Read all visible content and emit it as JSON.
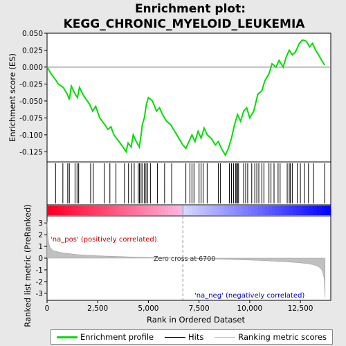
{
  "chart_data": {
    "type": "line",
    "title_line1": "Enrichment plot:",
    "title_line2": "KEGG_CHRONIC_MYELOID_LEUKEMIA",
    "colors": {
      "profile": "#00dd00",
      "hits": "#000000",
      "metric": "#c0c0c0",
      "pos": "#ff0000",
      "neg": "#0000ff"
    },
    "top_panel": {
      "ylabel": "Enrichment score (ES)",
      "ylim": [
        -0.14,
        0.05
      ],
      "yticks": [
        -0.125,
        -0.1,
        -0.075,
        -0.05,
        -0.025,
        0.0,
        0.025,
        0.05
      ],
      "ytick_labels": [
        "-0.125",
        "-0.100",
        "-0.075",
        "-0.050",
        "-0.025",
        "0.000",
        "0.025",
        "0.050"
      ],
      "series": [
        {
          "name": "Enrichment profile",
          "x": [
            0,
            200,
            450,
            550,
            800,
            1000,
            1100,
            1200,
            1350,
            1500,
            1600,
            1800,
            2100,
            2250,
            2400,
            2600,
            2850,
            3000,
            3150,
            3300,
            3550,
            3750,
            3900,
            4000,
            4150,
            4250,
            4400,
            4550,
            4650,
            4700,
            4800,
            4900,
            5000,
            5200,
            5400,
            5550,
            5700,
            5900,
            6100,
            6300,
            6500,
            6700,
            6850,
            7000,
            7150,
            7300,
            7450,
            7600,
            7750,
            7900,
            8100,
            8300,
            8450,
            8600,
            8800,
            8950,
            9100,
            9250,
            9400,
            9550,
            9700,
            9850,
            10000,
            10200,
            10400,
            10600,
            10750,
            10950,
            11100,
            11300,
            11450,
            11650,
            11800,
            11950,
            12100,
            12250,
            12450,
            12600,
            12800,
            12950,
            13100,
            13250,
            13400,
            13550,
            13700
          ],
          "y": [
            0.0,
            -0.01,
            -0.02,
            -0.025,
            -0.03,
            -0.04,
            -0.048,
            -0.028,
            -0.038,
            -0.045,
            -0.03,
            -0.042,
            -0.055,
            -0.065,
            -0.058,
            -0.075,
            -0.085,
            -0.092,
            -0.088,
            -0.1,
            -0.11,
            -0.118,
            -0.125,
            -0.112,
            -0.118,
            -0.1,
            -0.11,
            -0.118,
            -0.098,
            -0.085,
            -0.075,
            -0.055,
            -0.045,
            -0.05,
            -0.065,
            -0.06,
            -0.07,
            -0.08,
            -0.085,
            -0.095,
            -0.105,
            -0.115,
            -0.12,
            -0.11,
            -0.1,
            -0.11,
            -0.095,
            -0.105,
            -0.09,
            -0.1,
            -0.105,
            -0.115,
            -0.11,
            -0.12,
            -0.13,
            -0.12,
            -0.105,
            -0.085,
            -0.07,
            -0.08,
            -0.065,
            -0.06,
            -0.075,
            -0.065,
            -0.04,
            -0.035,
            -0.02,
            -0.01,
            0.005,
            0.0,
            0.01,
            0.0,
            0.015,
            0.025,
            0.018,
            0.022,
            0.035,
            0.04,
            0.038,
            0.03,
            0.035,
            0.025,
            0.018,
            0.01,
            0.003
          ]
        }
      ],
      "hits": [
        420,
        780,
        1020,
        1100,
        1380,
        1480,
        1560,
        2150,
        2280,
        2820,
        3100,
        3400,
        3820,
        4020,
        4180,
        4300,
        4500,
        4560,
        4640,
        4720,
        4800,
        4880,
        4960,
        5100,
        5450,
        5800,
        6150,
        6850,
        7050,
        7150,
        7250,
        7500,
        7600,
        7700,
        7900,
        8450,
        8550,
        9000,
        9100,
        9200,
        9300,
        9350,
        9400,
        9450,
        9700,
        9800,
        9900,
        10100,
        10250,
        10350,
        10450,
        10600,
        10700,
        10950,
        11050,
        11200,
        11400,
        11500,
        11850,
        11950,
        12000,
        12100,
        12350,
        12500,
        12700,
        12900,
        13150,
        13700
      ]
    },
    "bar_panel": {
      "split_rank": 6700
    },
    "bottom_panel": {
      "ylabel": "Ranked list metric (PreRanked)",
      "xlabel": "Rank in Ordered Dataset",
      "ylim": [
        -3.6,
        3.6
      ],
      "yticks": [
        -3,
        -2,
        -1,
        0,
        1,
        2,
        3
      ],
      "ytick_labels": [
        "-3",
        "-2",
        "-1",
        "0",
        "1",
        "2",
        "3"
      ],
      "xlim": [
        0,
        14000
      ],
      "xticks": [
        0,
        2500,
        5000,
        7500,
        10000,
        12500
      ],
      "xtick_labels": [
        "0",
        "2,500",
        "5,000",
        "7,500",
        "10,000",
        "12,500"
      ],
      "series": [
        {
          "name": "Ranking metric scores",
          "x": [
            0,
            30,
            80,
            150,
            300,
            600,
            1000,
            1500,
            2500,
            3500,
            4500,
            5500,
            6700,
            7500,
            8500,
            9500,
            10500,
            11200,
            11800,
            12300,
            12800,
            13100,
            13300,
            13450,
            13550,
            13620,
            13680,
            13720
          ],
          "y": [
            3.1,
            2.0,
            1.3,
            0.9,
            0.65,
            0.5,
            0.4,
            0.3,
            0.2,
            0.14,
            0.08,
            0.04,
            0.0,
            -0.05,
            -0.09,
            -0.14,
            -0.2,
            -0.26,
            -0.32,
            -0.38,
            -0.46,
            -0.55,
            -0.65,
            -0.8,
            -1.0,
            -1.3,
            -1.8,
            -3.4
          ]
        }
      ],
      "annotations": {
        "pos": "'na_pos' (positively correlated)",
        "zero": "Zero cross at 6700",
        "neg": "'na_neg' (negatively correlated)"
      }
    },
    "legend": [
      "Enrichment profile",
      "Hits",
      "Ranking metric scores"
    ]
  }
}
